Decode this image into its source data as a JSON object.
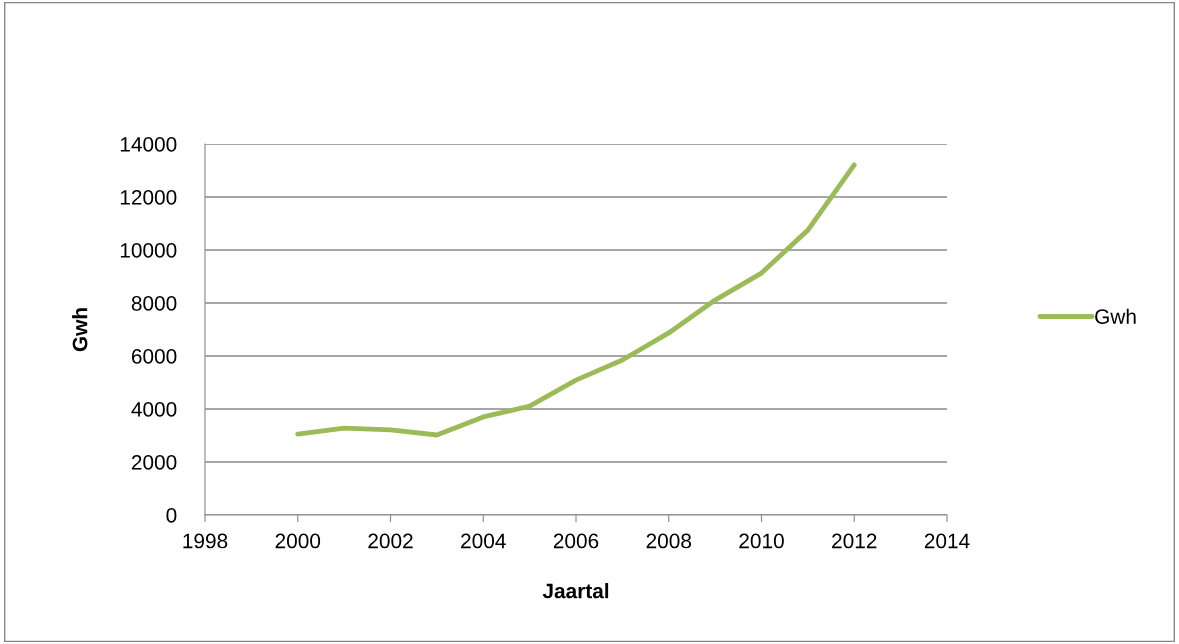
{
  "chart_data": {
    "type": "line",
    "xlabel": "Jaartal",
    "ylabel": "Gwh",
    "x": [
      2000,
      2001,
      2002,
      2003,
      2004,
      2005,
      2006,
      2007,
      2008,
      2009,
      2010,
      2011,
      2012
    ],
    "series": [
      {
        "name": "Gwh",
        "color": "#9bbb59",
        "values": [
          3050,
          3280,
          3210,
          3020,
          3700,
          4110,
          5090,
          5850,
          6870,
          8110,
          9130,
          10750,
          13210
        ]
      }
    ],
    "xlim": [
      1998,
      2014
    ],
    "xticks": [
      1998,
      2000,
      2002,
      2004,
      2006,
      2008,
      2010,
      2012,
      2014
    ],
    "ylim": [
      0,
      14000
    ],
    "yticks": [
      0,
      2000,
      4000,
      6000,
      8000,
      10000,
      12000,
      14000
    ],
    "grid": "y",
    "legend": "right",
    "marker": "none",
    "line_style": "solid"
  }
}
